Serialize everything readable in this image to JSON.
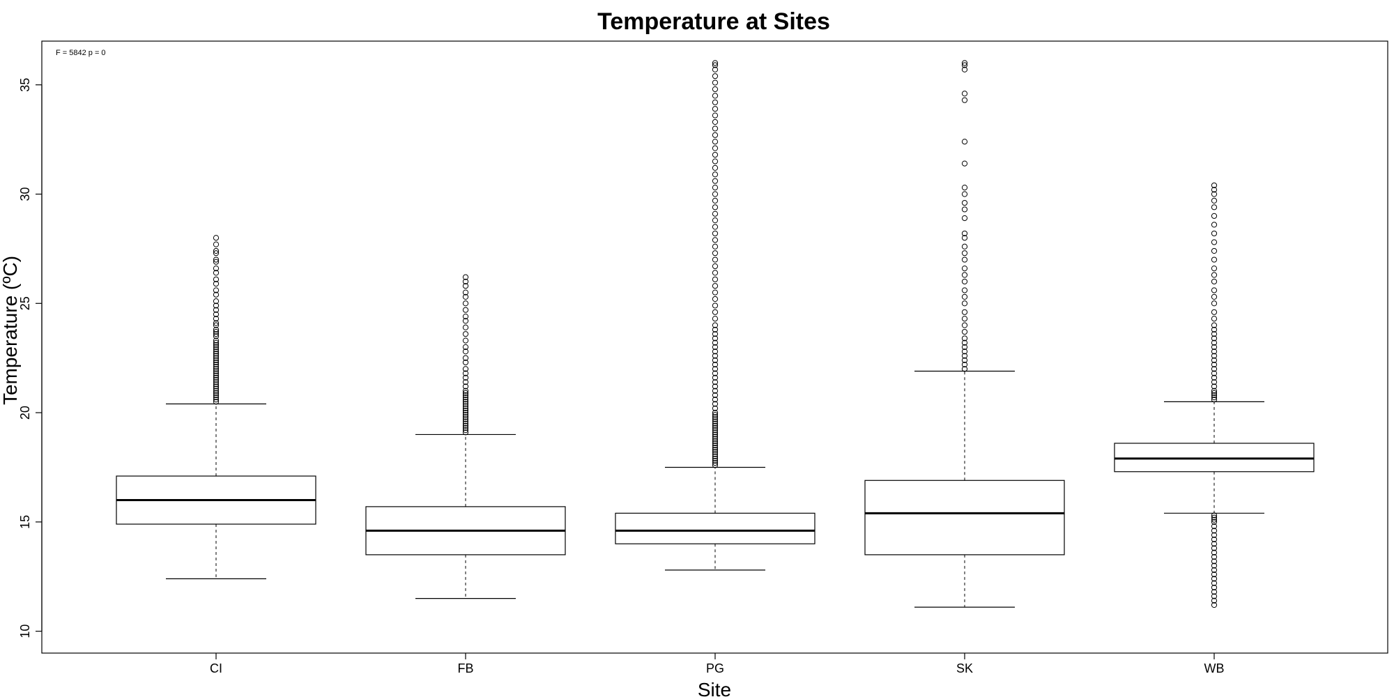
{
  "chart_data": {
    "type": "boxplot",
    "title": "Temperature at Sites",
    "xlabel": "Site",
    "ylabel": "Temperature (ºC)",
    "annotation": "F = 5842 p = 0",
    "ylim": [
      9.0,
      37.0
    ],
    "yticks": [
      "10",
      "15",
      "20",
      "25",
      "30",
      "35"
    ],
    "categories": [
      "CI",
      "FB",
      "PG",
      "SK",
      "WB"
    ],
    "boxes": [
      {
        "site": "CI",
        "whisker_low": 12.4,
        "q1": 14.9,
        "median": 16.0,
        "q3": 17.1,
        "whisker_high": 20.4,
        "outliers": [
          20.5,
          20.6,
          20.7,
          20.8,
          20.9,
          21.0,
          21.1,
          21.2,
          21.3,
          21.4,
          21.5,
          21.6,
          21.7,
          21.8,
          21.9,
          22.0,
          22.1,
          22.2,
          22.3,
          22.4,
          22.5,
          22.6,
          22.7,
          22.8,
          22.9,
          23.0,
          23.1,
          23.2,
          23.3,
          23.5,
          23.6,
          23.7,
          23.8,
          24.0,
          24.1,
          24.3,
          24.5,
          24.7,
          24.9,
          25.1,
          25.4,
          25.6,
          25.9,
          26.1,
          26.4,
          26.6,
          26.9,
          27.0,
          27.3,
          27.4,
          27.7,
          28.0
        ]
      },
      {
        "site": "FB",
        "whisker_low": 11.5,
        "q1": 13.5,
        "median": 14.6,
        "q3": 15.7,
        "whisker_high": 19.0,
        "outliers": [
          19.1,
          19.2,
          19.3,
          19.4,
          19.5,
          19.6,
          19.7,
          19.8,
          19.9,
          20.0,
          20.1,
          20.2,
          20.3,
          20.4,
          20.5,
          20.6,
          20.7,
          20.8,
          20.9,
          21.0,
          21.2,
          21.4,
          21.6,
          21.8,
          22.0,
          22.3,
          22.5,
          22.8,
          23.0,
          23.3,
          23.6,
          23.9,
          24.2,
          24.4,
          24.7,
          25.0,
          25.3,
          25.5,
          25.8,
          26.0,
          26.2
        ]
      },
      {
        "site": "PG",
        "whisker_low": 12.8,
        "q1": 14.0,
        "median": 14.6,
        "q3": 15.4,
        "whisker_high": 17.5,
        "outliers": [
          17.6,
          17.7,
          17.8,
          17.9,
          18.0,
          18.1,
          18.2,
          18.3,
          18.4,
          18.5,
          18.6,
          18.7,
          18.8,
          18.9,
          19.0,
          19.1,
          19.2,
          19.3,
          19.4,
          19.5,
          19.6,
          19.7,
          19.8,
          19.9,
          20.0,
          20.2,
          20.4,
          20.6,
          20.8,
          21.0,
          21.2,
          21.4,
          21.6,
          21.8,
          22.0,
          22.2,
          22.4,
          22.6,
          22.8,
          23.0,
          23.2,
          23.4,
          23.6,
          23.8,
          24.0,
          24.3,
          24.6,
          24.9,
          25.2,
          25.5,
          25.8,
          26.1,
          26.4,
          26.7,
          27.0,
          27.3,
          27.6,
          27.9,
          28.2,
          28.5,
          28.8,
          29.1,
          29.4,
          29.7,
          30.0,
          30.3,
          30.6,
          30.9,
          31.2,
          31.5,
          31.8,
          32.1,
          32.4,
          32.7,
          33.0,
          33.3,
          33.6,
          33.9,
          34.2,
          34.5,
          34.8,
          35.1,
          35.4,
          35.7,
          35.9,
          36.0
        ]
      },
      {
        "site": "SK",
        "whisker_low": 11.1,
        "q1": 13.5,
        "median": 15.4,
        "q3": 16.9,
        "whisker_high": 21.9,
        "outliers": [
          22.0,
          22.2,
          22.4,
          22.6,
          22.8,
          23.0,
          23.2,
          23.4,
          23.7,
          24.0,
          24.3,
          24.6,
          25.0,
          25.3,
          25.6,
          26.0,
          26.3,
          26.6,
          27.0,
          27.3,
          27.6,
          28.0,
          28.2,
          28.9,
          29.3,
          29.6,
          30.0,
          30.3,
          31.4,
          32.4,
          34.3,
          34.6,
          35.7,
          35.9,
          36.0
        ]
      },
      {
        "site": "WB",
        "whisker_low": 15.4,
        "q1": 17.3,
        "median": 17.9,
        "q3": 18.6,
        "whisker_high": 20.5,
        "outliers": [
          11.2,
          11.4,
          11.6,
          11.8,
          12.0,
          12.2,
          12.4,
          12.6,
          12.8,
          13.0,
          13.2,
          13.4,
          13.6,
          13.8,
          14.0,
          14.2,
          14.4,
          14.6,
          14.8,
          15.0,
          15.1,
          15.2,
          15.3,
          20.6,
          20.7,
          20.8,
          20.9,
          21.0,
          21.2,
          21.4,
          21.6,
          21.8,
          22.0,
          22.2,
          22.4,
          22.6,
          22.8,
          23.0,
          23.2,
          23.4,
          23.6,
          23.8,
          24.0,
          24.3,
          24.6,
          25.0,
          25.3,
          25.6,
          26.0,
          26.3,
          26.6,
          27.0,
          27.4,
          27.8,
          28.2,
          28.6,
          29.0,
          29.4,
          29.7,
          30.0,
          30.2,
          30.4
        ]
      }
    ]
  }
}
